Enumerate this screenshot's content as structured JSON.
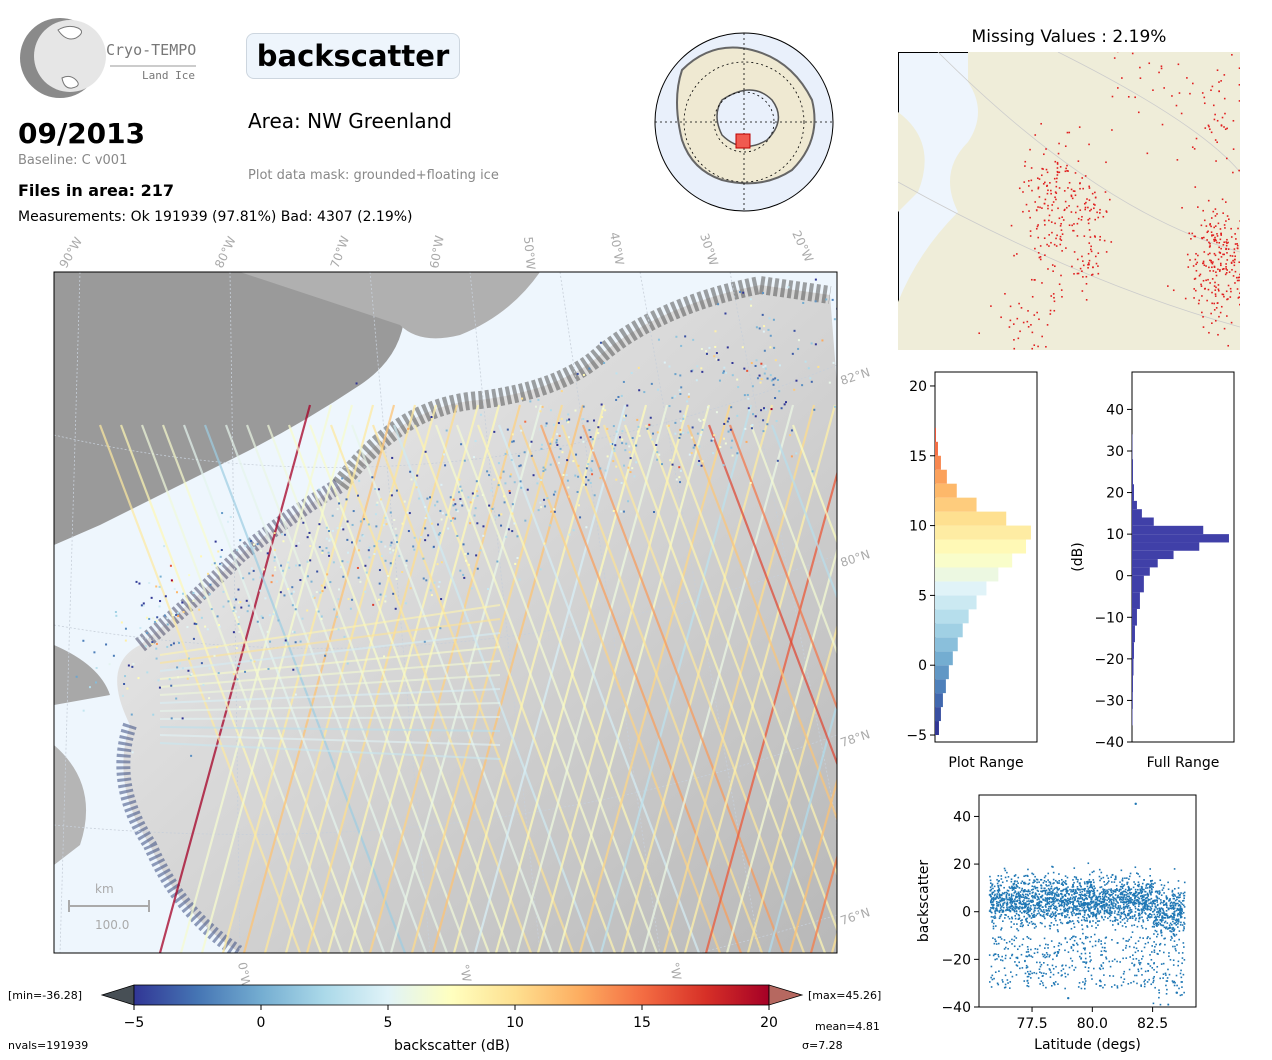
{
  "logo": {
    "name": "Cryo-TEMPO",
    "subtitle": "Land Ice"
  },
  "header": {
    "parameter": "backscatter",
    "date": "09/2013",
    "baseline": "Baseline: C v001",
    "area": "Area: NW Greenland",
    "mask": "Plot data mask: grounded+floating ice",
    "files": "Files in area: 217",
    "measurements": "Measurements: Ok 191939 (97.81%) Bad: 4307 (2.19%)"
  },
  "map": {
    "lon_labels": [
      "90°W",
      "80°W",
      "70°W",
      "60°W",
      "50°W",
      "40°W",
      "30°W",
      "20°W"
    ],
    "lat_labels": [
      "82°N",
      "80°N",
      "78°N",
      "76°N"
    ],
    "bottom_lon_labels": [
      "0°W",
      "°W",
      "°W"
    ],
    "scale_unit": "km",
    "scale_value": "100.0"
  },
  "missing": {
    "title": "Missing Values : 2.19%"
  },
  "colorbar": {
    "min_label": "[min=-36.28]",
    "max_label": "[max=45.26]",
    "ticks": [
      "−5",
      "0",
      "5",
      "10",
      "15",
      "20"
    ],
    "label": "backscatter (dB)",
    "nvals": "nvals=191939",
    "mean": "mean=4.81",
    "sigma": "σ=7.28",
    "colors": [
      "#313695",
      "#4575b4",
      "#74add1",
      "#abd9e9",
      "#e0f3f8",
      "#ffffbf",
      "#fee090",
      "#fdae61",
      "#f46d43",
      "#d73027",
      "#a50026"
    ],
    "range": [
      -5,
      20
    ]
  },
  "chart_data": [
    {
      "type": "bar",
      "name": "plot-range-histogram",
      "xlabel": "Plot Range",
      "ylim": [
        -5.5,
        21
      ],
      "yticks": [
        -5,
        0,
        5,
        10,
        15,
        20
      ],
      "bins": [
        -5,
        -4,
        -3,
        -2,
        -1,
        0,
        1,
        2,
        3,
        4,
        5,
        6,
        7,
        8,
        9,
        10,
        11,
        12,
        13,
        14,
        15,
        16
      ],
      "values": [
        0.04,
        0.06,
        0.08,
        0.11,
        0.14,
        0.18,
        0.23,
        0.28,
        0.34,
        0.42,
        0.52,
        0.64,
        0.78,
        0.92,
        0.97,
        0.72,
        0.42,
        0.22,
        0.12,
        0.06,
        0.03,
        0.01
      ]
    },
    {
      "type": "bar",
      "name": "full-range-histogram",
      "xlabel": "Full Range",
      "ylabel": "(dB)",
      "ylim": [
        -40,
        49
      ],
      "yticks": [
        -40,
        -30,
        -20,
        -10,
        0,
        10,
        20,
        30,
        40
      ],
      "color": "#4040a8",
      "bins": [
        -36,
        -32,
        -28,
        -24,
        -20,
        -16,
        -12,
        -8,
        -4,
        0,
        2,
        4,
        6,
        8,
        10,
        12,
        14,
        16,
        18,
        22,
        28
      ],
      "values": [
        0.005,
        0.008,
        0.01,
        0.015,
        0.02,
        0.03,
        0.05,
        0.08,
        0.12,
        0.18,
        0.26,
        0.42,
        0.68,
        0.98,
        0.72,
        0.22,
        0.1,
        0.05,
        0.02,
        0.01,
        0.004
      ]
    },
    {
      "type": "scatter",
      "name": "backscatter-vs-latitude",
      "xlabel": "Latitude (degs)",
      "ylabel": "backscatter",
      "xlim": [
        75.3,
        84.3
      ],
      "ylim": [
        -40,
        49
      ],
      "xticks": [
        77.5,
        80.0,
        82.5
      ],
      "yticks": [
        -40,
        -20,
        0,
        20,
        40
      ],
      "color": "#1f77b4",
      "band_lat_range": [
        75.7,
        83.8
      ],
      "band_center": 4.8,
      "band_sigma": 7.3,
      "extremes": [
        [
          79.0,
          -36.3
        ],
        [
          81.8,
          45.3
        ],
        [
          83.5,
          -34
        ]
      ]
    }
  ]
}
